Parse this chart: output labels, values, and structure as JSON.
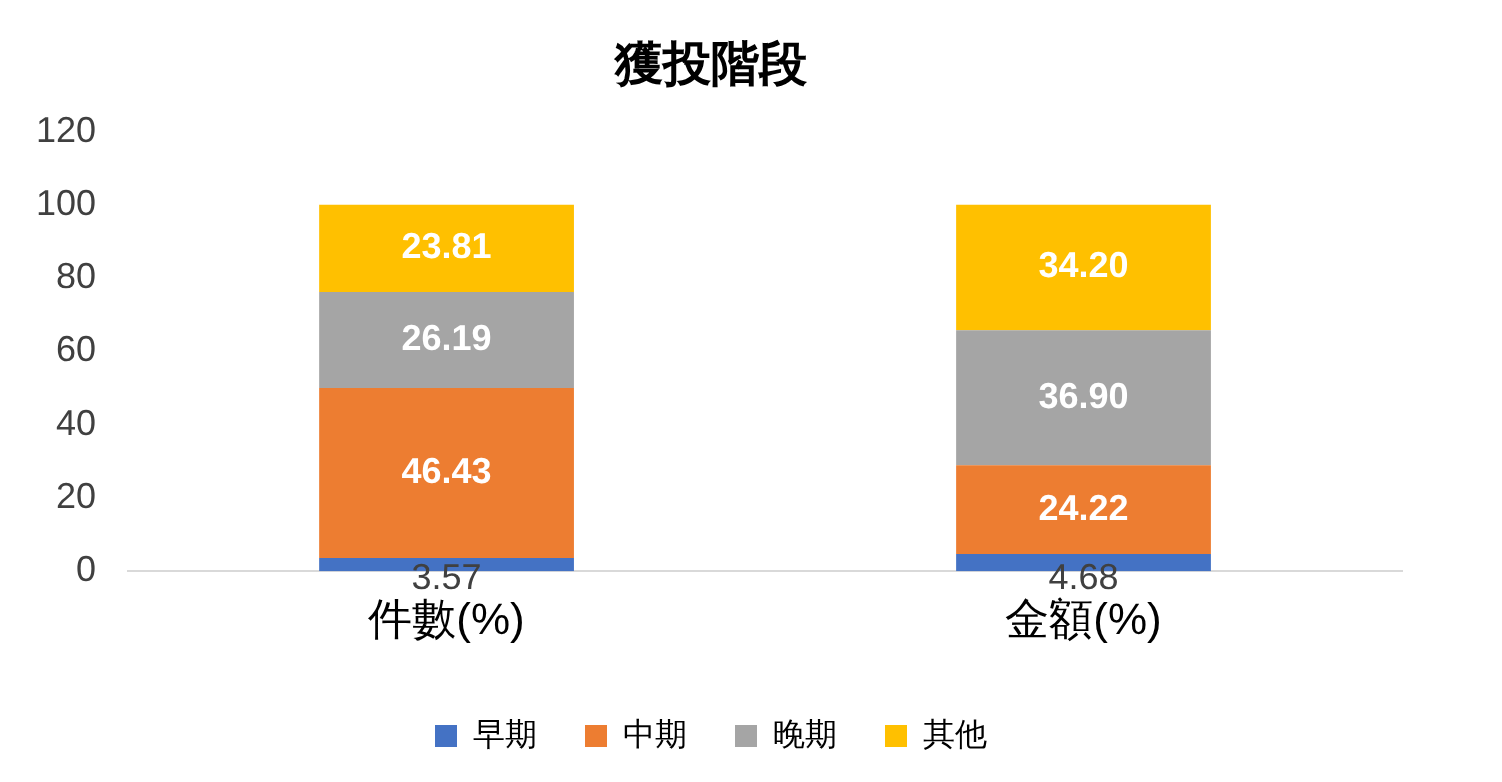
{
  "chart_data": {
    "type": "bar",
    "title": "獲投階段",
    "categories": [
      "件數(%)",
      "金額(%)"
    ],
    "stacked": true,
    "series": [
      {
        "name": "早期",
        "color": "#4472c4",
        "values": [
          3.57,
          4.68
        ],
        "value_labels": [
          "3.57",
          "4.68"
        ]
      },
      {
        "name": "中期",
        "color": "#ed7d31",
        "values": [
          46.43,
          24.22
        ],
        "value_labels": [
          "46.43",
          "24.22"
        ]
      },
      {
        "name": "晚期",
        "color": "#a5a5a5",
        "values": [
          26.19,
          36.9
        ],
        "value_labels": [
          "26.19",
          "36.90"
        ]
      },
      {
        "name": "其他",
        "color": "#ffc000",
        "values": [
          23.81,
          34.2
        ],
        "value_labels": [
          "23.81",
          "34.20"
        ]
      }
    ],
    "ylim": [
      0,
      120
    ],
    "yticks": [
      0,
      20,
      40,
      60,
      80,
      100,
      120
    ],
    "grid": false,
    "legend": "bottom"
  }
}
